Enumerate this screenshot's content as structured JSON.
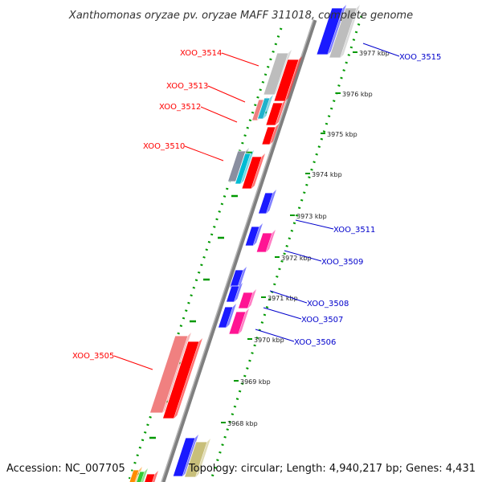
{
  "title": "Xanthomonas oryzae pv. oryzae MAFF 311018, complete genome",
  "accession": "Accession: NC_007705",
  "topology": "Topology: circular; Length: 4,940,217 bp; Genes: 4,431",
  "colors": {
    "backbone": "#7f7f7f",
    "tick": "#009900",
    "label_left": "#ff0000",
    "label_right": "#0000cc"
  },
  "scale": {
    "unit": "kbp",
    "ticks": [
      "3968 kbp",
      "3969 kbp",
      "3970 kbp",
      "3971 kbp",
      "3972 kbp",
      "3973 kbp",
      "3974 kbp",
      "3975 kbp",
      "3976 kbp",
      "3977 kbp"
    ]
  },
  "genes_left": [
    {
      "label": "XOO_3514",
      "color": "#ff0000"
    },
    {
      "label": "XOO_3513",
      "color": "#ff0000"
    },
    {
      "label": "XOO_3512",
      "color": "#ff0000"
    },
    {
      "label": "XOO_3510",
      "color": "#ff0000"
    },
    {
      "label": "XOO_3505",
      "color": "#ff0000"
    }
  ],
  "genes_right": [
    {
      "label": "XOO_3515",
      "color": "#0000ff"
    },
    {
      "label": "XOO_3511",
      "color": "#0000ff"
    },
    {
      "label": "XOO_3509",
      "color": "#ff1493"
    },
    {
      "label": "XOO_3508",
      "color": "#ff1493"
    },
    {
      "label": "XOO_3507",
      "color": "#0000ff"
    },
    {
      "label": "XOO_3506",
      "color": "#ff1493"
    }
  ]
}
